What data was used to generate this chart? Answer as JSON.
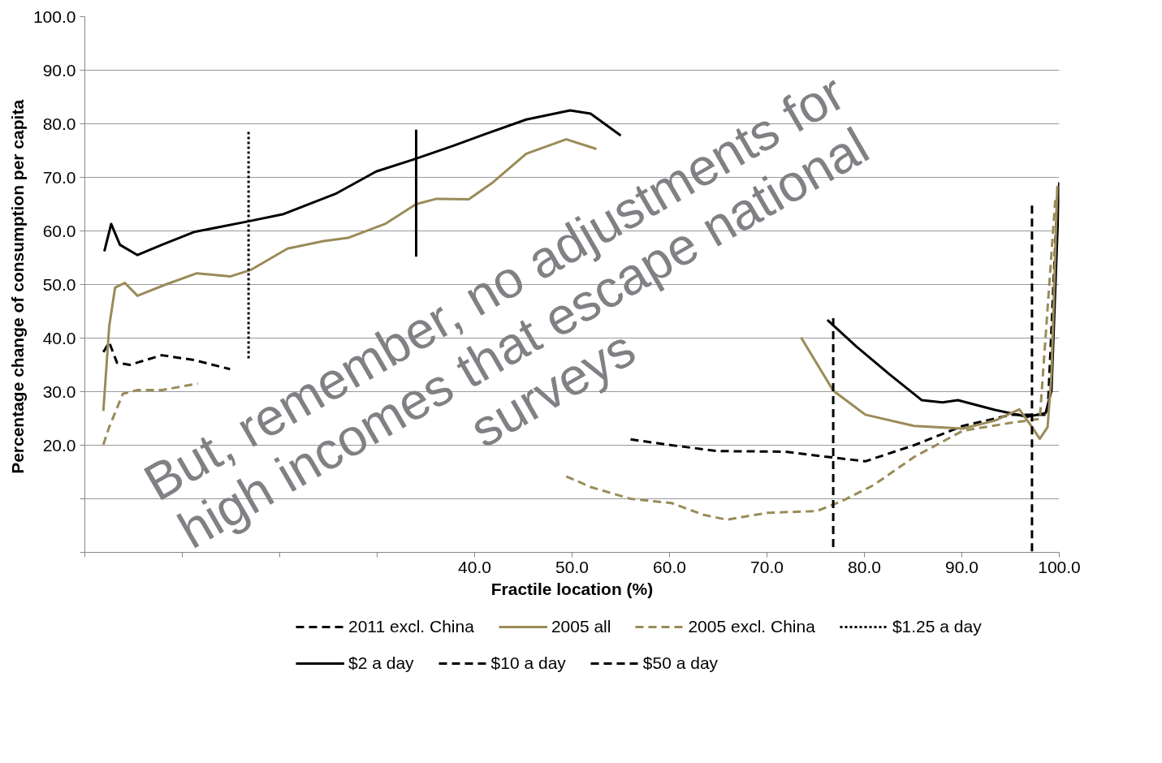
{
  "chart_data": {
    "type": "line",
    "xlabel": "Fractile location (%)",
    "ylabel": "Percentage change of  consumption per capita",
    "annotations": [
      "But, remember, no adjustments for\nhigh incomes that escape national\nsurveys"
    ],
    "xlim": [
      0,
      100
    ],
    "ylim": [
      0,
      100
    ],
    "xticks": [
      {
        "value": 0,
        "label": null
      },
      {
        "value": 10,
        "label": null
      },
      {
        "value": 20,
        "label": null
      },
      {
        "value": 30,
        "label": null
      },
      {
        "value": 40,
        "label": "40.0"
      },
      {
        "value": 50,
        "label": "50.0"
      },
      {
        "value": 60,
        "label": "60.0"
      },
      {
        "value": 70,
        "label": "70.0"
      },
      {
        "value": 80,
        "label": "80.0"
      },
      {
        "value": 90,
        "label": "90.0"
      },
      {
        "value": 100,
        "label": "100.0"
      }
    ],
    "yticks": [
      {
        "value": 0,
        "label": null
      },
      {
        "value": 10,
        "label": null
      },
      {
        "value": 20,
        "label": "20.0"
      },
      {
        "value": 30,
        "label": "30.0"
      },
      {
        "value": 40,
        "label": "40.0"
      },
      {
        "value": 50,
        "label": "50.0"
      },
      {
        "value": 60,
        "label": "60.0"
      },
      {
        "value": 70,
        "label": "70.0"
      },
      {
        "value": 80,
        "label": "80.0"
      },
      {
        "value": 90,
        "label": "90.0"
      },
      {
        "value": 100,
        "label": "100.0"
      }
    ],
    "grid": "y",
    "legend": "bottom",
    "series": [
      {
        "color": "#000000",
        "line_style": "solid",
        "x": [
          2.0,
          2.7,
          3.6,
          5.4,
          7.9,
          11.2,
          16.8,
          20.3,
          25.7,
          29.9,
          34.0,
          37.8,
          41.1,
          45.3,
          49.8,
          51.9,
          55.0,
          65.0,
          76.2,
          79.2,
          82.6,
          85.9,
          88.0,
          89.6,
          93.4,
          96.7,
          98.6,
          99.2,
          100
        ],
        "values": [
          56.2,
          61.3,
          57.4,
          55.5,
          57.4,
          59.8,
          61.8,
          63.1,
          66.9,
          71.1,
          73.5,
          75.9,
          78.1,
          80.8,
          82.5,
          81.9,
          77.8,
          null,
          43.4,
          38.4,
          33.2,
          28.4,
          28.0,
          28.4,
          26.6,
          25.3,
          26.0,
          30.2,
          69.1
        ]
      },
      {
        "name": "2011 excl. China",
        "color": "#000000",
        "line_style": "dashed",
        "x": [
          1.9,
          2.5,
          3.3,
          4.6,
          7.9,
          11.2,
          14.9,
          35.0,
          56.0,
          60.2,
          65.0,
          71.8,
          76.3,
          80.1,
          85.1,
          90.1,
          95.1,
          98.8,
          99.8
        ],
        "values": [
          37.4,
          39.2,
          35.4,
          35.0,
          36.8,
          35.9,
          34.2,
          null,
          21.1,
          20.0,
          18.9,
          18.8,
          17.8,
          17.0,
          20.0,
          23.6,
          25.7,
          25.7,
          66.1
        ]
      },
      {
        "name": "2005 all",
        "color": "#9a8b58",
        "line_style": "solid",
        "x": [
          1.9,
          2.5,
          3.1,
          4.1,
          5.4,
          8.3,
          11.5,
          14.9,
          17.0,
          20.8,
          24.5,
          27.0,
          30.8,
          34.0,
          36.1,
          39.4,
          41.9,
          45.3,
          49.4,
          52.5,
          63.0,
          73.5,
          76.8,
          80.1,
          85.1,
          90.1,
          93.4,
          95.9,
          97.2,
          98.0,
          98.8,
          99.2,
          99.8
        ],
        "values": [
          26.4,
          42.2,
          49.4,
          50.3,
          47.9,
          50.0,
          52.1,
          51.5,
          52.7,
          56.7,
          58.1,
          58.7,
          61.3,
          65.0,
          66.0,
          65.9,
          69.1,
          74.4,
          77.1,
          75.3,
          null,
          40.1,
          30.2,
          25.7,
          23.6,
          23.1,
          24.6,
          26.7,
          23.4,
          21.2,
          23.4,
          33.2,
          68.4
        ]
      },
      {
        "name": "2005 excl. China",
        "color": "#9a8b58",
        "line_style": "dashed",
        "x": [
          1.9,
          2.5,
          3.9,
          5.4,
          7.9,
          11.6,
          30.0,
          49.4,
          51.9,
          56.0,
          60.2,
          63.5,
          65.9,
          70.1,
          75.1,
          77.6,
          80.9,
          85.1,
          90.1,
          95.1,
          98.0,
          99.6
        ],
        "values": [
          20.1,
          23.4,
          29.6,
          30.3,
          30.3,
          31.5,
          null,
          14.2,
          12.2,
          10.0,
          9.2,
          7.0,
          6.1,
          7.4,
          7.7,
          9.5,
          12.5,
          17.8,
          22.7,
          24.2,
          24.9,
          66.1
        ]
      },
      {
        "name": "$1.25 a day",
        "color": "#000000",
        "line_style": "dotted",
        "x": [
          16.8,
          16.8
        ],
        "values": [
          36.2,
          78.9
        ]
      },
      {
        "name": "$2 a day",
        "color": "#000000",
        "line_style": "solid",
        "x": [
          34.0,
          34.0
        ],
        "values": [
          55.2,
          78.9
        ]
      },
      {
        "name": "$10 a day",
        "color": "#000000",
        "line_style": "dashed",
        "x": [
          76.8,
          76.8
        ],
        "values": [
          1.0,
          44.4
        ]
      },
      {
        "name": "$50 a day",
        "color": "#000000",
        "line_style": "dashed",
        "x": [
          97.2,
          97.2
        ],
        "values": [
          0.2,
          65.4
        ]
      }
    ]
  }
}
